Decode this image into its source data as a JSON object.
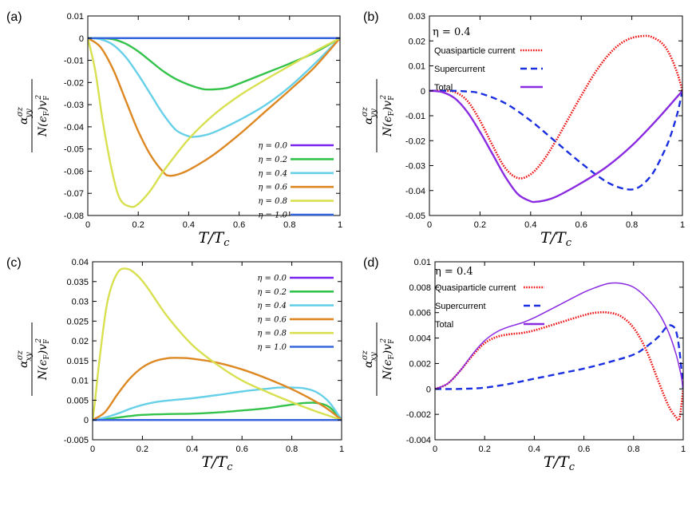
{
  "colors": {
    "eta_0_0": "#7722ee",
    "eta_0_2": "#33c24a",
    "eta_0_4": "#66d0e8",
    "eta_0_6": "#dd8822",
    "eta_0_8": "#d8e050",
    "eta_1_0": "#3366dd",
    "quasiparticle": "#ee1111",
    "supercurrent": "#1a2fe0",
    "total": "#8a2be2"
  },
  "chart_data": [
    {
      "panel": "(a)",
      "type": "line",
      "xlabel": "T/Tc",
      "ylabel": "alpha_yy^sigma_z / N(eF) vF^2",
      "xlim": [
        0,
        1
      ],
      "ylim": [
        -0.08,
        0.01
      ],
      "xticks": [
        "0",
        "0.2",
        "0.4",
        "0.6",
        "0.8",
        "1"
      ],
      "yticks": [
        "0.01",
        "0",
        "-0.01",
        "-0.02",
        "-0.03",
        "-0.04",
        "-0.05",
        "-0.06",
        "-0.07",
        "-0.08"
      ],
      "legend_position": "bottom-right",
      "series": [
        {
          "name": "η = 0.0",
          "color_key": "eta_0_0",
          "x": [
            0,
            0.2,
            0.4,
            0.6,
            0.8,
            1.0
          ],
          "y": [
            0,
            0,
            0,
            0,
            0,
            0
          ]
        },
        {
          "name": "η = 0.2",
          "color_key": "eta_0_2",
          "x": [
            0,
            0.05,
            0.1,
            0.15,
            0.2,
            0.25,
            0.3,
            0.35,
            0.4,
            0.45,
            0.48,
            0.55,
            0.6,
            0.7,
            0.8,
            0.9,
            1.0
          ],
          "y": [
            0,
            0,
            -0.0005,
            -0.0025,
            -0.006,
            -0.0105,
            -0.015,
            -0.0185,
            -0.021,
            -0.0228,
            -0.0232,
            -0.0225,
            -0.0205,
            -0.016,
            -0.0115,
            -0.0065,
            0
          ]
        },
        {
          "name": "η = 0.4",
          "color_key": "eta_0_4",
          "x": [
            0,
            0.05,
            0.1,
            0.15,
            0.2,
            0.25,
            0.3,
            0.35,
            0.4,
            0.42,
            0.45,
            0.5,
            0.6,
            0.7,
            0.8,
            0.9,
            1.0
          ],
          "y": [
            0,
            -0.0005,
            -0.003,
            -0.0085,
            -0.0165,
            -0.0255,
            -0.0345,
            -0.0415,
            -0.0443,
            -0.0445,
            -0.0441,
            -0.0425,
            -0.037,
            -0.0305,
            -0.022,
            -0.0115,
            0
          ]
        },
        {
          "name": "η = 0.6",
          "color_key": "eta_0_6",
          "x": [
            0,
            0.05,
            0.1,
            0.15,
            0.2,
            0.25,
            0.3,
            0.32,
            0.35,
            0.4,
            0.5,
            0.6,
            0.7,
            0.8,
            0.9,
            1.0
          ],
          "y": [
            0,
            -0.004,
            -0.014,
            -0.028,
            -0.042,
            -0.053,
            -0.0605,
            -0.062,
            -0.0617,
            -0.0595,
            -0.0525,
            -0.0435,
            -0.0335,
            -0.0235,
            -0.013,
            0
          ]
        },
        {
          "name": "η = 0.8",
          "color_key": "eta_0_8",
          "x": [
            0,
            0.03,
            0.06,
            0.1,
            0.13,
            0.17,
            0.2,
            0.25,
            0.3,
            0.4,
            0.5,
            0.6,
            0.7,
            0.8,
            0.9,
            1.0
          ],
          "y": [
            0,
            -0.015,
            -0.038,
            -0.062,
            -0.073,
            -0.076,
            -0.0748,
            -0.0685,
            -0.06,
            -0.0455,
            -0.0345,
            -0.026,
            -0.019,
            -0.0125,
            -0.006,
            0
          ]
        },
        {
          "name": "η = 1.0",
          "color_key": "eta_1_0",
          "x": [
            0,
            0.2,
            0.4,
            0.6,
            0.8,
            1.0
          ],
          "y": [
            0,
            0,
            0,
            0,
            0,
            0
          ]
        }
      ]
    },
    {
      "panel": "(b)",
      "type": "line",
      "annotation": "η = 0.4",
      "xlabel": "T/Tc",
      "ylabel": "alpha_yy^sigma_z / N(eF) vF^2",
      "xlim": [
        0,
        1
      ],
      "ylim": [
        -0.05,
        0.03
      ],
      "xticks": [
        "0",
        "0.2",
        "0.4",
        "0.6",
        "0.8",
        "1"
      ],
      "yticks": [
        "0.03",
        "0.02",
        "0.01",
        "0",
        "-0.01",
        "-0.02",
        "-0.03",
        "-0.04",
        "-0.05"
      ],
      "legend_position": "top-left",
      "series": [
        {
          "name": "Quasiparticle current",
          "style": "dotted",
          "color_key": "quasiparticle",
          "x": [
            0,
            0.05,
            0.1,
            0.15,
            0.2,
            0.25,
            0.3,
            0.35,
            0.4,
            0.45,
            0.5,
            0.55,
            0.6,
            0.65,
            0.7,
            0.75,
            0.8,
            0.85,
            0.88,
            0.92,
            0.95,
            0.98,
            1.0
          ],
          "y": [
            0,
            0,
            -0.0005,
            -0.004,
            -0.012,
            -0.022,
            -0.031,
            -0.035,
            -0.0335,
            -0.028,
            -0.02,
            -0.011,
            -0.002,
            0.0065,
            0.0135,
            0.0185,
            0.0212,
            0.022,
            0.0215,
            0.019,
            0.0145,
            0.007,
            0
          ]
        },
        {
          "name": "Supercurrent",
          "style": "dashed",
          "color_key": "supercurrent",
          "x": [
            0,
            0.1,
            0.15,
            0.2,
            0.3,
            0.4,
            0.5,
            0.6,
            0.7,
            0.78,
            0.83,
            0.88,
            0.92,
            0.95,
            0.98,
            1.0
          ],
          "y": [
            0,
            0,
            -0.0003,
            -0.001,
            -0.005,
            -0.012,
            -0.0205,
            -0.029,
            -0.0365,
            -0.0395,
            -0.0385,
            -0.0335,
            -0.026,
            -0.019,
            -0.009,
            0
          ]
        },
        {
          "name": "Total",
          "style": "solid",
          "color_key": "total",
          "x": [
            0,
            0.05,
            0.1,
            0.15,
            0.2,
            0.25,
            0.3,
            0.35,
            0.4,
            0.42,
            0.45,
            0.5,
            0.6,
            0.7,
            0.8,
            0.9,
            1.0
          ],
          "y": [
            0,
            -0.0005,
            -0.003,
            -0.0085,
            -0.0165,
            -0.0255,
            -0.0345,
            -0.0415,
            -0.0443,
            -0.0445,
            -0.0441,
            -0.0425,
            -0.037,
            -0.0305,
            -0.022,
            -0.0115,
            0
          ]
        }
      ]
    },
    {
      "panel": "(c)",
      "type": "line",
      "xlabel": "T/Tc",
      "ylabel": "alpha_xy^sigma_z / N(eF) vF^2",
      "xlim": [
        0,
        1
      ],
      "ylim": [
        -0.005,
        0.04
      ],
      "xticks": [
        "0",
        "0.2",
        "0.4",
        "0.6",
        "0.8",
        "1"
      ],
      "yticks": [
        "0.04",
        "0.035",
        "0.03",
        "0.025",
        "0.02",
        "0.015",
        "0.01",
        "0.005",
        "0",
        "-0.005"
      ],
      "legend_position": "top-right",
      "series": [
        {
          "name": "η = 0.0",
          "color_key": "eta_0_0",
          "x": [
            0,
            0.2,
            0.4,
            0.6,
            0.8,
            1.0
          ],
          "y": [
            0,
            0,
            0,
            0,
            0,
            0
          ]
        },
        {
          "name": "η = 0.2",
          "color_key": "eta_0_2",
          "x": [
            0,
            0.05,
            0.1,
            0.15,
            0.2,
            0.3,
            0.4,
            0.5,
            0.6,
            0.7,
            0.8,
            0.85,
            0.9,
            0.95,
            1.0
          ],
          "y": [
            0,
            0.0002,
            0.0006,
            0.001,
            0.0013,
            0.0015,
            0.0016,
            0.0019,
            0.0024,
            0.003,
            0.0039,
            0.0043,
            0.0043,
            0.0033,
            0
          ]
        },
        {
          "name": "η = 0.4",
          "color_key": "eta_0_4",
          "x": [
            0,
            0.05,
            0.1,
            0.15,
            0.2,
            0.25,
            0.3,
            0.4,
            0.5,
            0.6,
            0.7,
            0.75,
            0.8,
            0.85,
            0.9,
            0.95,
            1.0
          ],
          "y": [
            0,
            0.0006,
            0.0016,
            0.0028,
            0.0038,
            0.0045,
            0.0049,
            0.0055,
            0.0063,
            0.0072,
            0.0079,
            0.0082,
            0.0082,
            0.008,
            0.007,
            0.0045,
            0
          ]
        },
        {
          "name": "η = 0.6",
          "color_key": "eta_0_6",
          "x": [
            0,
            0.05,
            0.1,
            0.15,
            0.2,
            0.25,
            0.3,
            0.35,
            0.4,
            0.5,
            0.6,
            0.7,
            0.8,
            0.9,
            0.95,
            1.0
          ],
          "y": [
            0,
            0.002,
            0.0065,
            0.0105,
            0.0133,
            0.0149,
            0.0156,
            0.0157,
            0.0155,
            0.0145,
            0.0128,
            0.0105,
            0.0078,
            0.0045,
            0.0025,
            0
          ]
        },
        {
          "name": "η = 0.8",
          "color_key": "eta_0_8",
          "x": [
            0,
            0.01,
            0.03,
            0.06,
            0.1,
            0.14,
            0.18,
            0.22,
            0.3,
            0.4,
            0.5,
            0.6,
            0.7,
            0.8,
            0.9,
            1.0
          ],
          "y": [
            0,
            0.005,
            0.0165,
            0.03,
            0.0372,
            0.0382,
            0.0365,
            0.0335,
            0.0262,
            0.019,
            0.014,
            0.01,
            0.0071,
            0.0045,
            0.0021,
            0
          ]
        },
        {
          "name": "η = 1.0",
          "color_key": "eta_1_0",
          "x": [
            0,
            0.2,
            0.4,
            0.6,
            0.8,
            1.0
          ],
          "y": [
            0,
            0,
            0,
            0,
            0,
            0
          ]
        }
      ]
    },
    {
      "panel": "(d)",
      "type": "line",
      "annotation": "η = 0.4",
      "xlabel": "T/Tc",
      "ylabel": "alpha_xy^sigma_z / N(eF) vF^2",
      "xlim": [
        0,
        1
      ],
      "ylim": [
        -0.004,
        0.01
      ],
      "xticks": [
        "0",
        "0.2",
        "0.4",
        "0.6",
        "0.8",
        "1"
      ],
      "yticks": [
        "0.01",
        "0.008",
        "0.006",
        "0.004",
        "0.002",
        "0",
        "-0.002",
        "-0.004"
      ],
      "legend_position": "top-left",
      "series": [
        {
          "name": "Quasiparticle current",
          "style": "dotted",
          "color_key": "quasiparticle",
          "x": [
            0,
            0.05,
            0.1,
            0.15,
            0.2,
            0.25,
            0.3,
            0.35,
            0.4,
            0.5,
            0.6,
            0.65,
            0.7,
            0.75,
            0.8,
            0.85,
            0.9,
            0.94,
            0.97,
            0.985,
            1.0
          ],
          "y": [
            0,
            0.0004,
            0.0014,
            0.0026,
            0.0036,
            0.0041,
            0.0043,
            0.0044,
            0.0046,
            0.0052,
            0.0058,
            0.006,
            0.006,
            0.0057,
            0.0048,
            0.0031,
            0.0006,
            -0.0013,
            -0.0022,
            -0.0023,
            0
          ]
        },
        {
          "name": "Supercurrent",
          "style": "dashed",
          "color_key": "supercurrent",
          "x": [
            0,
            0.1,
            0.2,
            0.3,
            0.4,
            0.5,
            0.6,
            0.7,
            0.8,
            0.85,
            0.9,
            0.93,
            0.95,
            0.97,
            0.985,
            1.0
          ],
          "y": [
            0,
            0,
            0.0001,
            0.0004,
            0.0008,
            0.0012,
            0.0016,
            0.0021,
            0.0027,
            0.0033,
            0.0041,
            0.0048,
            0.005,
            0.0046,
            0.003,
            0
          ]
        },
        {
          "name": "Total",
          "style": "solid",
          "color_key": "total",
          "x": [
            0,
            0.05,
            0.1,
            0.15,
            0.2,
            0.25,
            0.3,
            0.35,
            0.4,
            0.5,
            0.6,
            0.65,
            0.7,
            0.75,
            0.8,
            0.85,
            0.9,
            0.94,
            0.97,
            0.99,
            1.0
          ],
          "y": [
            0,
            0.0004,
            0.0014,
            0.0027,
            0.0038,
            0.0045,
            0.0049,
            0.0052,
            0.0056,
            0.0066,
            0.0076,
            0.008,
            0.0083,
            0.0083,
            0.008,
            0.0072,
            0.006,
            0.0045,
            0.0028,
            0.0012,
            0
          ]
        }
      ]
    }
  ]
}
